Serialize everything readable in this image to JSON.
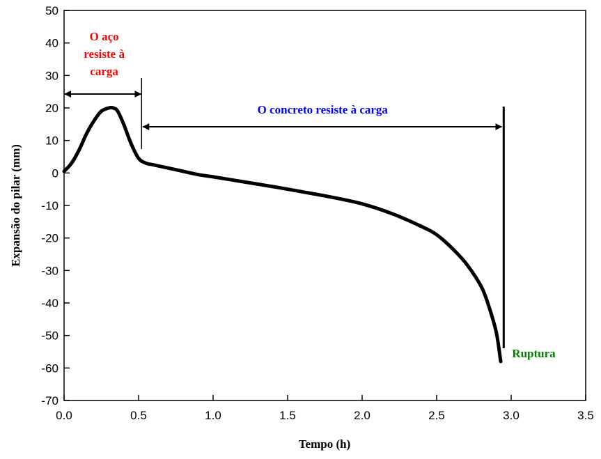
{
  "chart_data": {
    "type": "line",
    "xlabel": "Tempo (h)",
    "ylabel": "Expansão do pilar (mm)",
    "xlim": [
      0,
      3.5
    ],
    "ylim": [
      -70,
      50
    ],
    "grid": false,
    "x_ticks": [
      "0.0",
      "0.5",
      "1.0",
      "1.5",
      "2.0",
      "2.5",
      "3.0",
      "3.5"
    ],
    "y_ticks": [
      "50",
      "40",
      "30",
      "20",
      "10",
      "0",
      "-10",
      "-20",
      "-30",
      "-40",
      "-50",
      "-60",
      "-70"
    ],
    "series": [
      {
        "x": [
          0.0,
          0.05,
          0.1,
          0.15,
          0.2,
          0.25,
          0.3,
          0.33,
          0.36,
          0.4,
          0.45,
          0.5,
          0.55,
          0.6,
          0.7,
          0.8,
          0.9,
          1.0,
          1.2,
          1.4,
          1.6,
          1.8,
          2.0,
          2.2,
          2.4,
          2.5,
          2.6,
          2.7,
          2.8,
          2.85,
          2.9,
          2.93
        ],
        "y": [
          0.5,
          3,
          7,
          12,
          16,
          19,
          20,
          20,
          19,
          15,
          9,
          4.5,
          3,
          2.5,
          1.5,
          0.5,
          -0.5,
          -1.2,
          -2.7,
          -4.2,
          -5.8,
          -7.5,
          -9.5,
          -12.5,
          -16.5,
          -19,
          -23,
          -28,
          -35,
          -41,
          -49,
          -58
        ]
      }
    ],
    "color": "#000000",
    "annotations": {
      "steel_label": "O aço resiste à carga",
      "steel_color": "#ff0000",
      "concrete_label": "O concreto resiste à carga",
      "concrete_color": "#0000ff",
      "rupture_label": "Ruptura",
      "rupture_color": "#008000",
      "steel_range": [
        0.0,
        0.52
      ],
      "concrete_range": [
        0.52,
        2.95
      ],
      "rupture_x": 2.95
    }
  }
}
